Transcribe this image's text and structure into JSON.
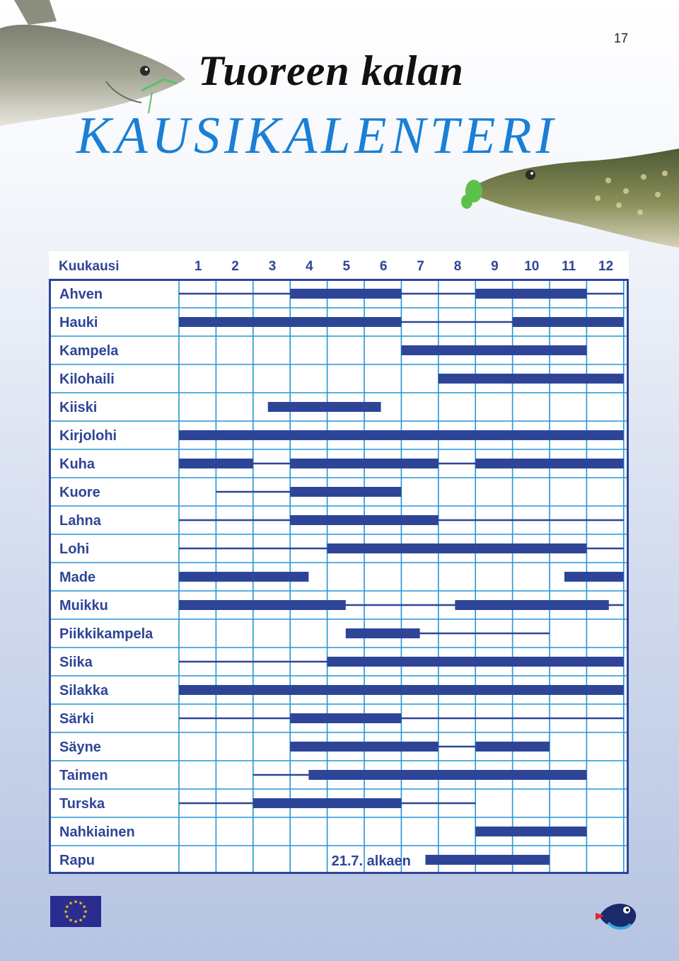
{
  "page_number": "17",
  "title_line1": "Tuoreen kalan",
  "title_line2": "KAUSIKALENTERI",
  "table": {
    "header_label": "Kuukausi",
    "months": [
      "1",
      "2",
      "3",
      "4",
      "5",
      "6",
      "7",
      "8",
      "9",
      "10",
      "11",
      "12"
    ],
    "rows": [
      {
        "name": "Ahven",
        "thin": [
          [
            1,
            12
          ]
        ],
        "thick": [
          [
            4,
            6
          ],
          [
            9,
            11
          ]
        ]
      },
      {
        "name": "Hauki",
        "thin": [
          [
            1,
            12
          ]
        ],
        "thick": [
          [
            1,
            6
          ],
          [
            10,
            12
          ]
        ]
      },
      {
        "name": "Kampela",
        "thin": [],
        "thick": [
          [
            7,
            11
          ]
        ]
      },
      {
        "name": "Kilohaili",
        "thin": [],
        "thick": [
          [
            8,
            12
          ]
        ]
      },
      {
        "name": "Kiiski",
        "thin": [],
        "thick": [
          [
            3.4,
            5.45
          ]
        ]
      },
      {
        "name": "Kirjolohi",
        "thin": [],
        "thick": [
          [
            1,
            12
          ]
        ]
      },
      {
        "name": "Kuha",
        "thin": [
          [
            1,
            12
          ]
        ],
        "thick": [
          [
            1,
            2
          ],
          [
            4,
            7
          ],
          [
            9,
            12
          ]
        ]
      },
      {
        "name": "Kuore",
        "thin": [
          [
            2,
            4
          ]
        ],
        "thick": [
          [
            4,
            6
          ]
        ]
      },
      {
        "name": "Lahna",
        "thin": [
          [
            1,
            12
          ]
        ],
        "thick": [
          [
            4,
            7
          ]
        ]
      },
      {
        "name": "Lohi",
        "thin": [
          [
            1,
            12
          ]
        ],
        "thick": [
          [
            5,
            8
          ],
          [
            9,
            11
          ]
        ]
      },
      {
        "name": "Made",
        "thin": [],
        "thick": [
          [
            1,
            3.5
          ],
          [
            11.4,
            12
          ]
        ]
      },
      {
        "name": "Muikku",
        "thin": [
          [
            1,
            12
          ]
        ],
        "thick": [
          [
            1,
            4.5
          ],
          [
            8.45,
            11.6
          ]
        ]
      },
      {
        "name": "Piikkikampela",
        "thin": [
          [
            6,
            10
          ]
        ],
        "thick": [
          [
            5.5,
            6.5
          ]
        ]
      },
      {
        "name": "Siika",
        "thin": [
          [
            1,
            12
          ]
        ],
        "thick": [
          [
            5,
            12
          ]
        ]
      },
      {
        "name": "Silakka",
        "thin": [],
        "thick": [
          [
            1,
            12
          ]
        ]
      },
      {
        "name": "Särki",
        "thin": [
          [
            1,
            12
          ]
        ],
        "thick": [
          [
            4,
            6
          ]
        ]
      },
      {
        "name": "Säyne",
        "thin": [
          [
            4,
            9
          ]
        ],
        "thick": [
          [
            4,
            7
          ],
          [
            9,
            10
          ]
        ]
      },
      {
        "name": "Taimen",
        "thin": [
          [
            3,
            4.5
          ]
        ],
        "thick": [
          [
            4.5,
            11
          ]
        ]
      },
      {
        "name": "Turska",
        "thin": [
          [
            1,
            8
          ]
        ],
        "thick": [
          [
            3,
            6
          ]
        ]
      },
      {
        "name": "Nahkiainen",
        "thin": [],
        "thick": [
          [
            9,
            11
          ]
        ]
      },
      {
        "name": "Rapu",
        "thin": [],
        "thick": [
          [
            7.65,
            10
          ]
        ],
        "note": "21.7. alkaen"
      }
    ]
  },
  "colors": {
    "grid": "#2596d6",
    "bar": "#2e4597",
    "frame": "#2e4597",
    "title_blue": "#1a7fd6"
  }
}
